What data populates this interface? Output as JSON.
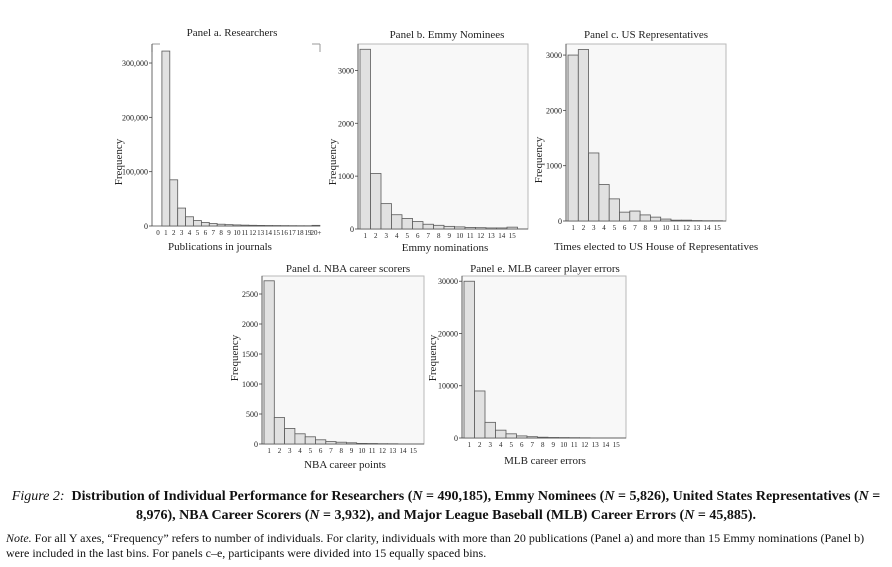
{
  "chart_data": [
    {
      "id": "a",
      "type": "bar",
      "title": "Panel a. Researchers",
      "xlabel": "Publications in journals",
      "ylabel": "Frequency",
      "categories": [
        "0",
        "1",
        "2",
        "3",
        "4",
        "5",
        "6",
        "7",
        "8",
        "9",
        "10",
        "11",
        "12",
        "13",
        "14",
        "15",
        "16",
        "17",
        "18",
        "19",
        "20+"
      ],
      "values": [
        0,
        322000,
        85000,
        33000,
        17000,
        10000,
        6500,
        4500,
        3300,
        2500,
        2000,
        1600,
        1300,
        1100,
        900,
        800,
        700,
        600,
        500,
        450,
        1200
      ],
      "yticks": [
        0,
        100000,
        200000,
        300000
      ],
      "ytick_labels": [
        "0",
        "100,000",
        "200,000",
        "300,000"
      ],
      "ylim": [
        0,
        335000
      ]
    },
    {
      "id": "b",
      "type": "bar",
      "title": "Panel b. Emmy Nominees",
      "xlabel": "Emmy nominations",
      "ylabel": "Frequency",
      "categories": [
        "1",
        "2",
        "3",
        "4",
        "5",
        "6",
        "7",
        "8",
        "9",
        "10",
        "11",
        "12",
        "13",
        "14",
        "15"
      ],
      "values": [
        3400,
        1050,
        480,
        270,
        200,
        140,
        90,
        70,
        50,
        40,
        30,
        25,
        20,
        20,
        35
      ],
      "yticks": [
        0,
        1000,
        2000,
        3000
      ],
      "ytick_labels": [
        "0",
        "1000",
        "2000",
        "3000"
      ],
      "ylim": [
        0,
        3500
      ]
    },
    {
      "id": "c",
      "type": "bar",
      "title": "Panel c. US Representatives",
      "xlabel": "Times elected to US House of Representatives",
      "ylabel": "Frequency",
      "categories": [
        "1",
        "2",
        "3",
        "4",
        "5",
        "6",
        "7",
        "8",
        "9",
        "10",
        "11",
        "12",
        "13",
        "14",
        "15"
      ],
      "values": [
        3000,
        3100,
        1230,
        660,
        400,
        160,
        180,
        110,
        70,
        35,
        15,
        15,
        8,
        5,
        5
      ],
      "yticks": [
        0,
        1000,
        2000,
        3000
      ],
      "ytick_labels": [
        "0",
        "1000",
        "2000",
        "3000"
      ],
      "ylim": [
        0,
        3200
      ]
    },
    {
      "id": "d",
      "type": "bar",
      "title": "Panel d. NBA career scorers",
      "xlabel": "NBA career points",
      "ylabel": "Frequency",
      "categories": [
        "1",
        "2",
        "3",
        "4",
        "5",
        "6",
        "7",
        "8",
        "9",
        "10",
        "11",
        "12",
        "13",
        "14",
        "15"
      ],
      "values": [
        2720,
        440,
        260,
        170,
        120,
        70,
        40,
        30,
        20,
        10,
        8,
        5,
        4,
        3,
        3
      ],
      "yticks": [
        0,
        500,
        1000,
        1500,
        2000,
        2500
      ],
      "ytick_labels": [
        "0",
        "500",
        "1000",
        "1500",
        "2000",
        "2500"
      ],
      "ylim": [
        0,
        2800
      ]
    },
    {
      "id": "e",
      "type": "bar",
      "title": "Panel e. MLB career player errors",
      "xlabel": "MLB career errors",
      "ylabel": "Frequency",
      "categories": [
        "1",
        "2",
        "3",
        "4",
        "5",
        "6",
        "7",
        "8",
        "9",
        "10",
        "11",
        "12",
        "13",
        "14",
        "15"
      ],
      "values": [
        30000,
        9000,
        3000,
        1500,
        800,
        400,
        250,
        150,
        100,
        80,
        60,
        40,
        30,
        20,
        20
      ],
      "yticks": [
        0,
        10000,
        20000,
        30000
      ],
      "ytick_labels": [
        "0",
        "10000",
        "20000",
        "30000"
      ],
      "ylim": [
        0,
        31000
      ]
    }
  ],
  "caption": {
    "figure_label": "Figure 2:",
    "title_part1": "Distribution of Individual Performance for Researchers (",
    "n_symbol": "N",
    "title_part2": " = 490,185), Emmy Nominees (",
    "title_part3": " = 5,826), United States Representatives (",
    "title_part4": " = 8,976), NBA Career Scorers (",
    "title_part5": " = 3,932), and Major League Baseball (MLB) Career Errors (",
    "title_part6": " = 45,885)."
  },
  "note": {
    "label": "Note.",
    "text": " For all Y axes, “Frequency” refers to number of individuals. For clarity, individuals with more than 20 publications (Panel a) and more than 15 Emmy nominations (Panel b) were included in the last bins. For panels c–e, participants were divided into 15 equally spaced bins."
  }
}
